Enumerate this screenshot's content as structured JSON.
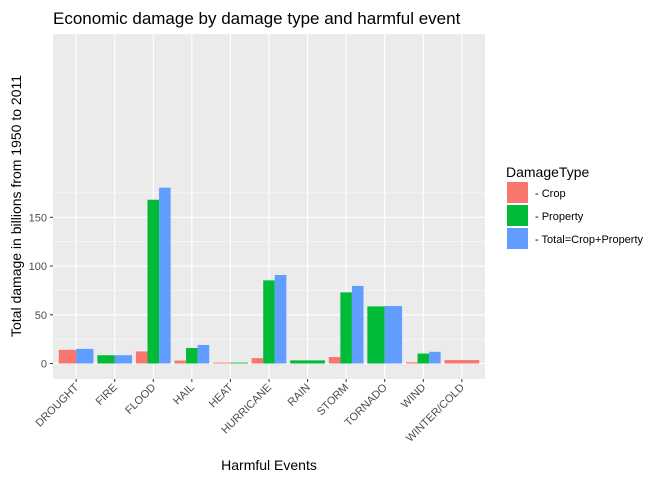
{
  "chart_data": {
    "type": "bar",
    "title": "Economic damage by damage type and harmful event",
    "xlabel": "Harmful Events",
    "ylabel": "Total damage in billions from 1950 to 2011",
    "categories": [
      "DROUGHT",
      "FIRE",
      "FLOOD",
      "HAIL",
      "HEAT",
      "HURRICANE",
      "RAIN",
      "STORM",
      "TORNADO",
      "WIND",
      "WINTER/COLD"
    ],
    "series": [
      {
        "name": "- Crop",
        "color": "#F8766D",
        "values": [
          14.0,
          null,
          12.4,
          3.0,
          0.9,
          5.5,
          null,
          6.6,
          null,
          1.2,
          3.5
        ]
      },
      {
        "name": "- Property",
        "color": "#00BA38",
        "values": [
          null,
          8.5,
          168.0,
          15.9,
          0.9,
          85.3,
          3.2,
          73.0,
          58.6,
          10.2,
          null
        ]
      },
      {
        "name": "- Total=Crop+Property",
        "color": "#619CFF",
        "values": [
          15.0,
          8.5,
          180.4,
          19.0,
          null,
          90.8,
          null,
          79.6,
          59.0,
          12.0,
          null
        ]
      }
    ],
    "ylim": [
      0,
      187
    ],
    "yticks": [
      0,
      50,
      100,
      150
    ],
    "grid": true,
    "legend": {
      "title": "DamageType",
      "position": "right"
    }
  }
}
